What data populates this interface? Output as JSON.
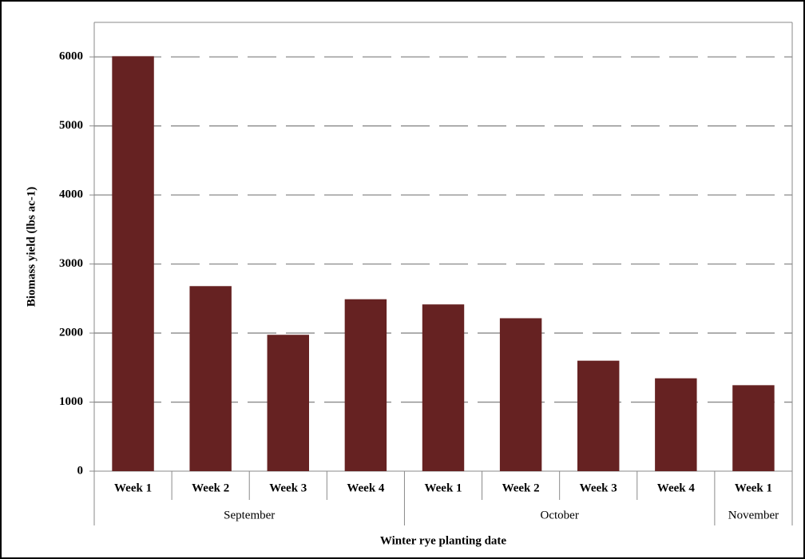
{
  "chart_data": {
    "type": "bar",
    "y_label": "Biomass yield (lbs ac-1)",
    "x_label": "Winter rye planting date",
    "groups": [
      {
        "label": "September",
        "categories": [
          "Week 1",
          "Week 2",
          "Week 3",
          "Week 4"
        ]
      },
      {
        "label": "October",
        "categories": [
          "Week 1",
          "Week 2",
          "Week 3",
          "Week 4"
        ]
      },
      {
        "label": "November",
        "categories": [
          "Week 1"
        ]
      }
    ],
    "values": [
      6010,
      2680,
      1975,
      2490,
      2415,
      2215,
      1600,
      1345,
      1245
    ],
    "color": "#662222",
    "ylim": [
      0,
      6500
    ],
    "yticks": [
      0,
      1000,
      2000,
      3000,
      4000,
      5000,
      6000
    ],
    "grid": true
  }
}
